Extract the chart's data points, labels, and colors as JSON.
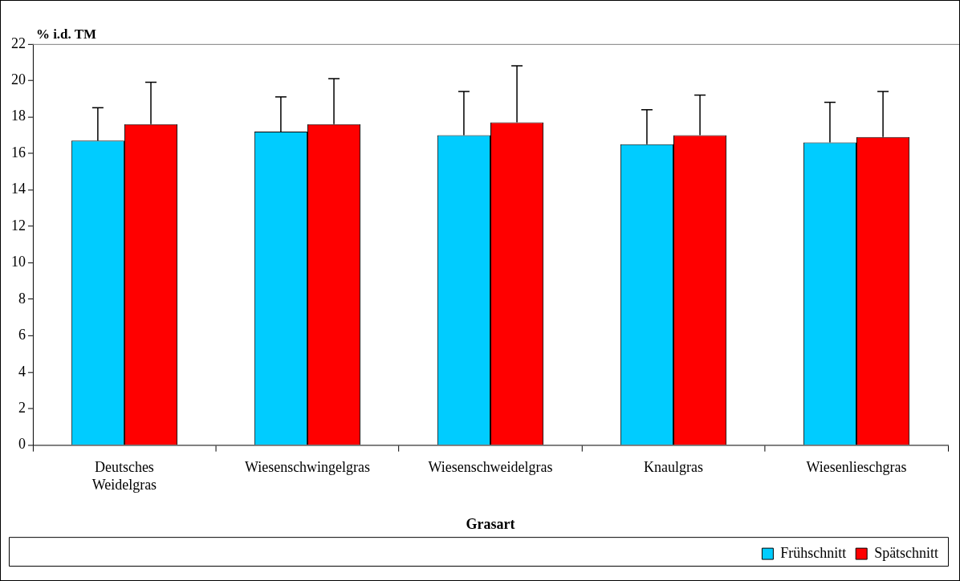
{
  "chart_data": {
    "type": "bar",
    "xlabel": "Grasart",
    "ylabel": "% i.d. TM",
    "categories": [
      "Deutsches Weidelgras",
      "Wiesenschwingelgras",
      "Wiesenschweidelgras",
      "Knaulgras",
      "Wiesenlieschgras"
    ],
    "series": [
      {
        "name": "Frühschnitt",
        "color": "#00ccff",
        "values": [
          16.7,
          17.2,
          17.0,
          16.5,
          16.6
        ],
        "errors": [
          [
            16.7,
            18.5
          ],
          [
            17.2,
            19.1
          ],
          [
            17.0,
            19.4
          ],
          [
            16.5,
            18.4
          ],
          [
            16.6,
            18.8
          ]
        ]
      },
      {
        "name": "Spätschnitt",
        "color": "#ff0000",
        "values": [
          17.6,
          17.6,
          17.7,
          17.0,
          16.9
        ],
        "errors": [
          [
            17.6,
            19.9
          ],
          [
            17.6,
            20.1
          ],
          [
            17.7,
            20.8
          ],
          [
            17.0,
            19.2
          ],
          [
            16.9,
            19.4
          ]
        ]
      }
    ],
    "ylim": [
      0,
      22
    ],
    "yticks": [
      0,
      2,
      4,
      6,
      8,
      10,
      12,
      14,
      16,
      18,
      20,
      22
    ],
    "grid": false,
    "legend": "bottom right"
  }
}
